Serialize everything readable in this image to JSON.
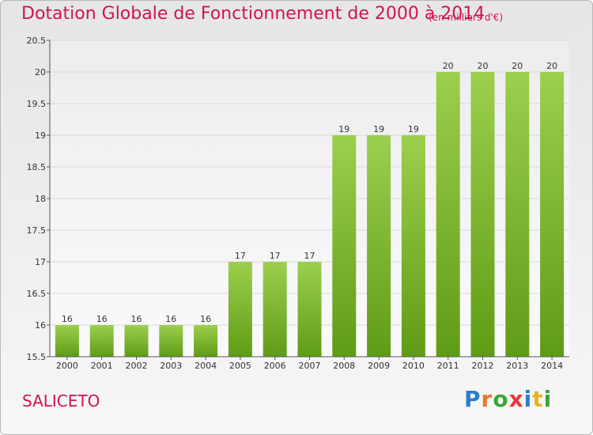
{
  "title": "Dotation Globale de Fonctionnement de 2000 à 2014",
  "subtitle": "(en milliers d'€)",
  "place": "SALICETO",
  "logo_text": "Proxiti",
  "colors": {
    "title": "#d1144f",
    "bar_top": "#9ccf4d",
    "bar_bottom": "#5f9c16",
    "grid": "#d8d8d8"
  },
  "chart_data": {
    "type": "bar",
    "title": "Dotation Globale de Fonctionnement de 2000 à 2014",
    "subtitle": "(en milliers d'€)",
    "categories": [
      "2000",
      "2001",
      "2002",
      "2003",
      "2004",
      "2005",
      "2006",
      "2007",
      "2008",
      "2009",
      "2010",
      "2011",
      "2012",
      "2013",
      "2014"
    ],
    "values": [
      16,
      16,
      16,
      16,
      16,
      17,
      17,
      17,
      19,
      19,
      19,
      20,
      20,
      20,
      20
    ],
    "data_labels": [
      "16",
      "16",
      "16",
      "16",
      "16",
      "17",
      "17",
      "17",
      "19",
      "19",
      "19",
      "20",
      "20",
      "20",
      "20"
    ],
    "yticks": [
      "15.5",
      "16",
      "16.5",
      "17",
      "17.5",
      "18",
      "18.5",
      "19",
      "19.5",
      "20",
      "20.5"
    ],
    "ylim": [
      15.5,
      20.5
    ],
    "grid": true,
    "legend": "none"
  }
}
